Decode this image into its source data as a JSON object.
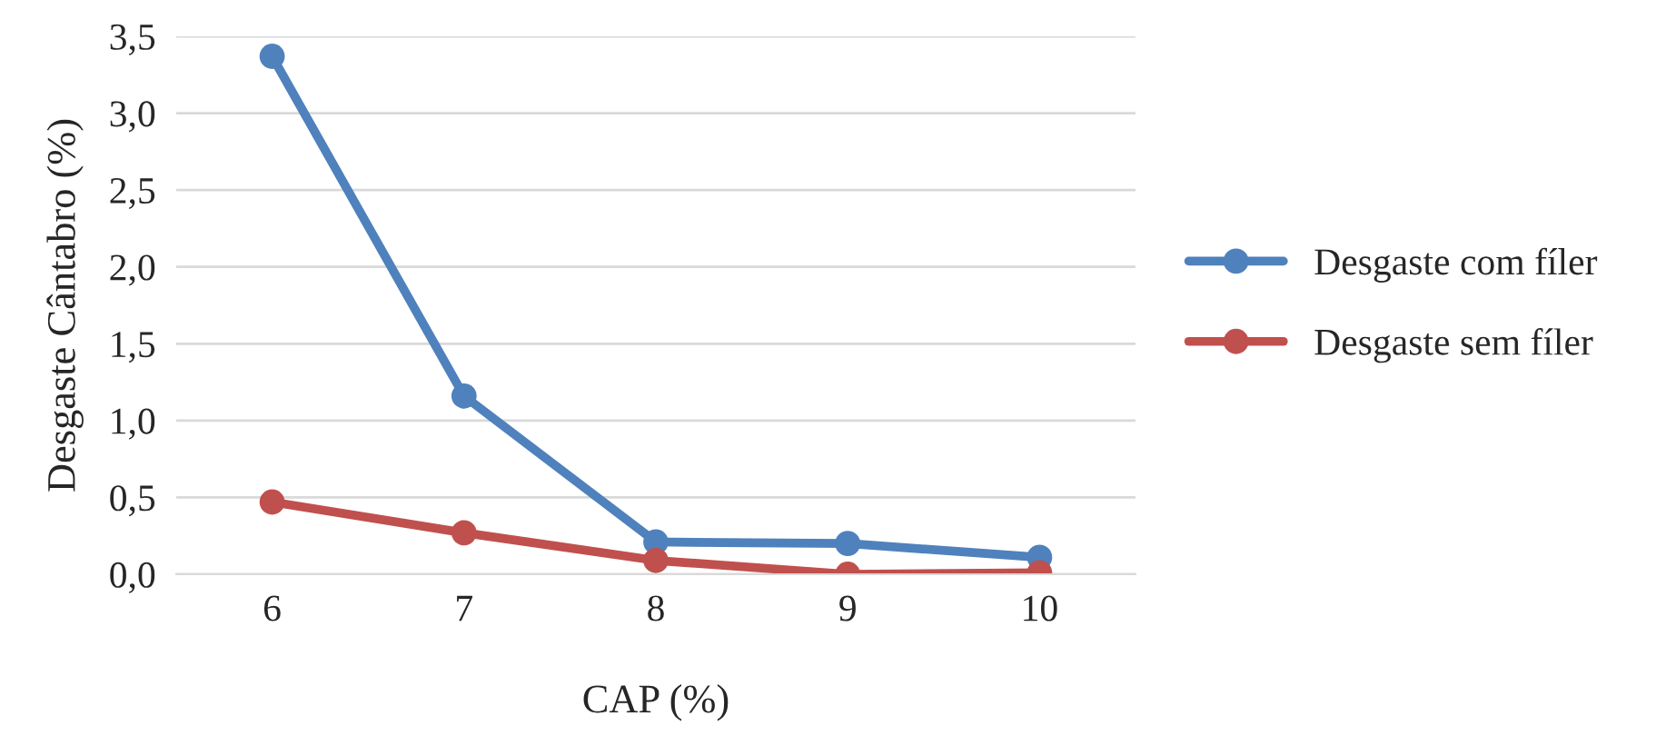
{
  "chart_data": {
    "type": "line",
    "xlabel": "CAP (%)",
    "ylabel": "Desgaste Cântabro (%)",
    "categories": [
      "6",
      "7",
      "8",
      "9",
      "10"
    ],
    "series": [
      {
        "name": "Desgaste com fíler",
        "color": "#4f81bd",
        "values": [
          3.37,
          1.16,
          0.21,
          0.2,
          0.11
        ]
      },
      {
        "name": "Desgaste sem fíler",
        "color": "#c0504d",
        "values": [
          0.47,
          0.27,
          0.09,
          0.0,
          0.01
        ]
      }
    ],
    "ylim": [
      0,
      3.5
    ],
    "yticks": [
      {
        "value": 0,
        "label": "0,0"
      },
      {
        "value": 0.5,
        "label": "0,5"
      },
      {
        "value": 1,
        "label": "1,0"
      },
      {
        "value": 1.5,
        "label": "1,5"
      },
      {
        "value": 2,
        "label": "2,0"
      },
      {
        "value": 2.5,
        "label": "2,5"
      },
      {
        "value": 3,
        "label": "3,0"
      },
      {
        "value": 3.5,
        "label": "3,5"
      }
    ],
    "grid": "y",
    "legend": "right",
    "marker": "circle",
    "line_style": "solid"
  }
}
